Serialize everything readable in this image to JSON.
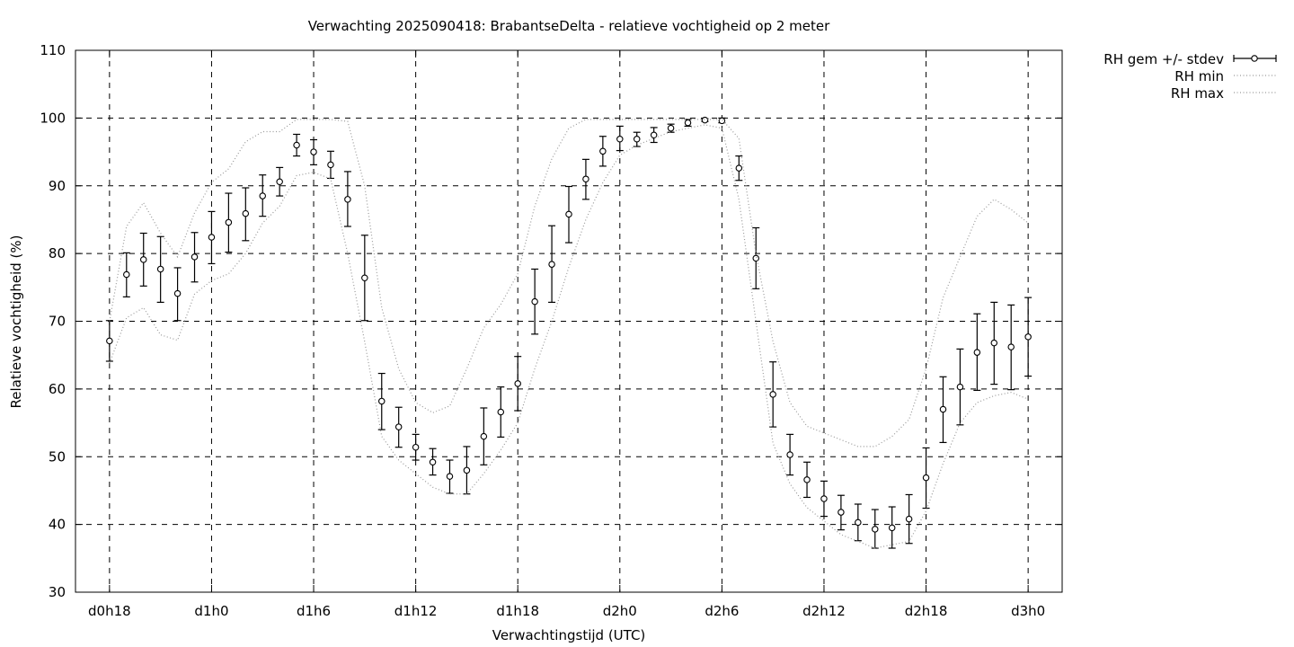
{
  "chart_data": {
    "type": "line",
    "title": "Verwachting 2025090418: BrabantseDelta - relatieve vochtigheid op 2 meter",
    "xlabel": "Verwachtingstijd (UTC)",
    "ylabel": "Relatieve vochtigheid (%)",
    "xlim": [
      -2,
      56
    ],
    "ylim": [
      30,
      110
    ],
    "yticks": [
      30,
      40,
      50,
      60,
      70,
      80,
      90,
      100,
      110
    ],
    "xticks": [
      {
        "x": 0,
        "label": "d0h18"
      },
      {
        "x": 6,
        "label": "d1h0"
      },
      {
        "x": 12,
        "label": "d1h6"
      },
      {
        "x": 18,
        "label": "d1h12"
      },
      {
        "x": 24,
        "label": "d1h18"
      },
      {
        "x": 30,
        "label": "d2h0"
      },
      {
        "x": 36,
        "label": "d2h6"
      },
      {
        "x": 42,
        "label": "d2h12"
      },
      {
        "x": 48,
        "label": "d2h18"
      },
      {
        "x": 54,
        "label": "d3h0"
      }
    ],
    "grid": true,
    "legend_position": "outside-top-right",
    "series": [
      {
        "name": "RH gem +/- stdev",
        "style": "errorbars",
        "color": "#000000",
        "x": [
          0,
          1,
          2,
          3,
          4,
          5,
          6,
          7,
          8,
          9,
          10,
          11,
          12,
          13,
          14,
          15,
          16,
          17,
          18,
          19,
          20,
          21,
          22,
          23,
          24,
          25,
          26,
          27,
          28,
          29,
          30,
          31,
          32,
          33,
          34,
          35,
          36,
          37,
          38,
          39,
          40,
          41,
          42,
          43,
          44,
          45,
          46,
          47,
          48,
          49,
          50,
          51,
          52,
          53,
          54
        ],
        "y": [
          67.1,
          76.9,
          79.1,
          77.7,
          74.1,
          79.5,
          82.4,
          84.6,
          85.9,
          88.5,
          90.6,
          96.0,
          95.0,
          93.1,
          88.0,
          76.4,
          58.2,
          54.4,
          51.4,
          49.2,
          47.1,
          48.0,
          53.0,
          56.6,
          60.8,
          72.9,
          78.4,
          85.8,
          91.0,
          95.1,
          96.9,
          96.9,
          97.5,
          98.5,
          99.3,
          99.7,
          99.6,
          92.6,
          79.3,
          59.2,
          50.3,
          46.6,
          43.8,
          41.8,
          40.3,
          39.3,
          39.5,
          40.8,
          46.9,
          57.0,
          60.3,
          65.4,
          66.8,
          66.2,
          67.7
        ],
        "low": [
          64.1,
          73.6,
          75.2,
          72.8,
          70.1,
          75.8,
          78.5,
          80.2,
          81.9,
          85.5,
          88.5,
          94.4,
          93.1,
          91.1,
          84.0,
          70.1,
          54.0,
          51.4,
          49.5,
          47.3,
          44.6,
          44.5,
          48.8,
          52.9,
          56.8,
          68.1,
          72.8,
          81.6,
          88.0,
          92.9,
          95.2,
          95.8,
          96.4,
          97.9,
          98.8,
          99.5,
          99.3,
          90.8,
          74.8,
          54.4,
          47.3,
          44.0,
          41.2,
          39.2,
          37.6,
          36.5,
          36.5,
          37.2,
          42.4,
          52.1,
          54.7,
          59.8,
          60.7,
          59.9,
          61.9
        ],
        "high": [
          70.1,
          80.1,
          83.0,
          82.5,
          77.9,
          83.1,
          86.2,
          88.9,
          89.7,
          91.6,
          92.7,
          97.6,
          96.8,
          95.1,
          92.1,
          82.7,
          62.3,
          57.3,
          53.3,
          51.2,
          49.5,
          51.5,
          57.2,
          60.3,
          64.8,
          77.7,
          84.1,
          89.9,
          93.9,
          97.3,
          98.8,
          97.9,
          98.6,
          99.1,
          99.8,
          99.9,
          100.0,
          94.4,
          83.8,
          64.0,
          53.3,
          49.2,
          46.4,
          44.3,
          43.0,
          42.2,
          42.6,
          44.4,
          51.3,
          61.8,
          65.9,
          71.1,
          72.8,
          72.4,
          73.5
        ]
      },
      {
        "name": "RH min",
        "style": "dotted",
        "color": "#999999",
        "x": [
          0,
          1,
          2,
          3,
          4,
          5,
          6,
          7,
          8,
          9,
          10,
          11,
          12,
          13,
          14,
          15,
          16,
          17,
          18,
          19,
          20,
          21,
          22,
          23,
          24,
          25,
          26,
          27,
          28,
          29,
          30,
          31,
          32,
          33,
          34,
          35,
          36,
          37,
          38,
          39,
          40,
          41,
          42,
          43,
          44,
          45,
          46,
          47,
          48,
          49,
          50,
          51,
          52,
          53,
          54
        ],
        "y": [
          63.8,
          70.5,
          72.0,
          68.0,
          67.2,
          74.0,
          76.0,
          77.0,
          80.0,
          84.5,
          87.0,
          91.5,
          92.0,
          91.0,
          80.0,
          67.0,
          53.0,
          49.5,
          47.5,
          45.5,
          44.5,
          44.5,
          47.5,
          51.0,
          55.0,
          63.0,
          70.0,
          78.0,
          85.0,
          90.5,
          94.5,
          96.0,
          97.0,
          98.0,
          98.5,
          99.0,
          98.5,
          88.0,
          70.0,
          52.0,
          46.0,
          42.5,
          40.5,
          38.5,
          37.5,
          36.5,
          37.0,
          37.5,
          42.0,
          49.0,
          55.0,
          58.0,
          59.0,
          59.5,
          58.5
        ]
      },
      {
        "name": "RH max",
        "style": "dotted",
        "color": "#999999",
        "x": [
          0,
          1,
          2,
          3,
          4,
          5,
          6,
          7,
          8,
          9,
          10,
          11,
          12,
          13,
          14,
          15,
          16,
          17,
          18,
          19,
          20,
          21,
          22,
          23,
          24,
          25,
          26,
          27,
          28,
          29,
          30,
          31,
          32,
          33,
          34,
          35,
          36,
          37,
          38,
          39,
          40,
          41,
          42,
          43,
          44,
          45,
          46,
          47,
          48,
          49,
          50,
          51,
          52,
          53,
          54
        ],
        "y": [
          70.0,
          84.0,
          87.5,
          83.0,
          79.5,
          86.0,
          90.5,
          92.5,
          96.5,
          98.0,
          98.0,
          99.8,
          99.8,
          99.8,
          99.5,
          90.0,
          72.0,
          63.0,
          58.0,
          56.5,
          57.5,
          63.0,
          69.0,
          72.5,
          77.0,
          87.0,
          94.0,
          98.5,
          99.8,
          99.8,
          99.8,
          99.8,
          99.8,
          99.8,
          99.8,
          99.8,
          99.8,
          97.0,
          80.0,
          67.0,
          58.0,
          54.5,
          53.5,
          52.5,
          51.5,
          51.5,
          53.0,
          55.5,
          63.0,
          73.5,
          79.5,
          85.5,
          88.0,
          86.5,
          84.5
        ]
      }
    ]
  }
}
